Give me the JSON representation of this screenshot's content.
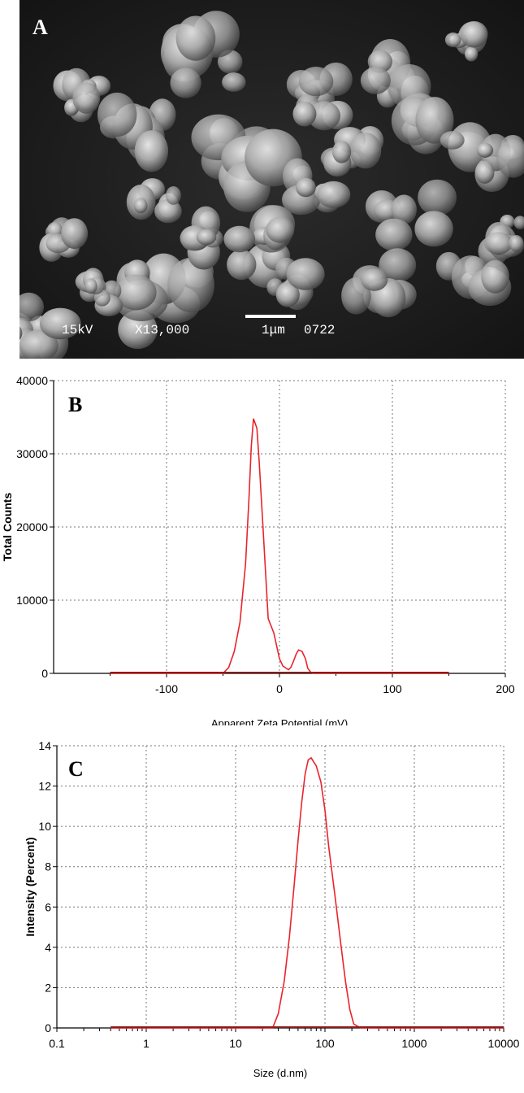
{
  "panel_a": {
    "letter": "A",
    "voltage": "15kV",
    "magnification": "X13,000",
    "scale_bar": "1μm",
    "image_number": "0722"
  },
  "chart_data": [
    {
      "panel": "B",
      "type": "line",
      "xlabel": "Apparent Zeta Potential (mV)",
      "ylabel": "Total Counts",
      "xlim": [
        -200,
        200
      ],
      "ylim": [
        0,
        40000
      ],
      "x_ticks": [
        -100,
        0,
        100,
        200
      ],
      "y_ticks": [
        0,
        10000,
        20000,
        30000,
        40000
      ],
      "grid": true,
      "line_color": "#e8242a",
      "series": [
        {
          "x": [
            -150,
            -100,
            -60,
            -50,
            -45,
            -40,
            -35,
            -30,
            -27,
            -25,
            -23,
            -20,
            -18,
            -15,
            -12,
            -10,
            -5,
            0,
            3,
            8,
            10,
            12,
            15,
            17,
            20,
            23,
            25,
            28,
            30,
            50,
            100,
            150
          ],
          "y": [
            0,
            0,
            0,
            0,
            800,
            3000,
            7000,
            15000,
            24000,
            31000,
            34800,
            33500,
            29000,
            21000,
            13000,
            7500,
            5500,
            2000,
            1000,
            500,
            800,
            1500,
            2700,
            3200,
            3000,
            2000,
            700,
            100,
            0,
            0,
            0,
            0
          ]
        }
      ]
    },
    {
      "panel": "C",
      "type": "line",
      "xlabel": "Size (d.nm)",
      "ylabel": "Intensity (Percent)",
      "x_scale": "log",
      "xlim": [
        0.1,
        10000
      ],
      "ylim": [
        0,
        14
      ],
      "x_ticks": [
        "0.1",
        "1",
        "10",
        "100",
        "1000",
        "10000"
      ],
      "y_ticks": [
        0,
        2,
        4,
        6,
        8,
        10,
        12,
        14
      ],
      "grid": true,
      "line_color": "#e8242a",
      "series": [
        {
          "x": [
            0.4,
            1,
            10,
            20,
            26,
            30,
            35,
            40,
            45,
            50,
            55,
            60,
            65,
            70,
            80,
            90,
            100,
            110,
            130,
            150,
            170,
            190,
            210,
            250,
            1000,
            10000
          ],
          "y": [
            0,
            0,
            0,
            0,
            0,
            0.7,
            2.3,
            4.5,
            7.0,
            9.3,
            11.2,
            12.6,
            13.3,
            13.4,
            13.0,
            12.2,
            10.8,
            9.0,
            6.5,
            4.2,
            2.3,
            0.9,
            0.2,
            0,
            0,
            0
          ]
        }
      ]
    }
  ]
}
